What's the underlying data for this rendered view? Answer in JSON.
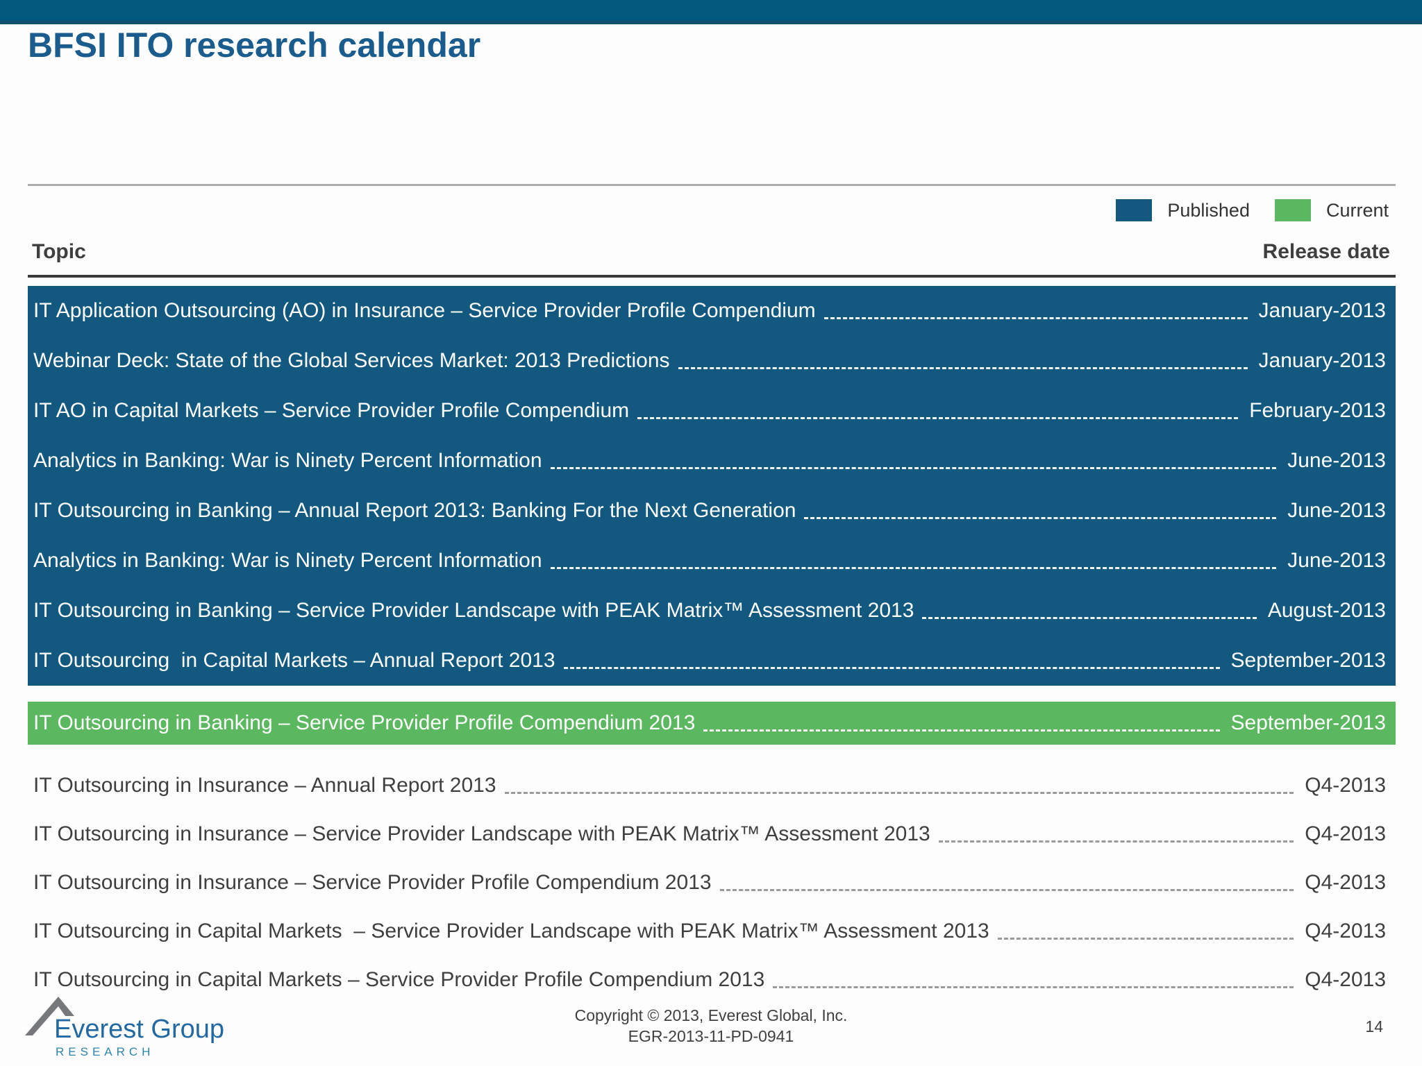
{
  "title": "BFSI ITO research calendar",
  "legend": {
    "published": {
      "label": "Published"
    },
    "current": {
      "label": "Current"
    }
  },
  "table": {
    "headers": {
      "topic": "Topic",
      "release_date": "Release date"
    },
    "sections": [
      {
        "name": "published",
        "rows": [
          {
            "topic": "IT Application Outsourcing (AO) in Insurance – Service Provider Profile Compendium",
            "date": "January-2013"
          },
          {
            "topic": "Webinar Deck: State of the Global Services Market: 2013 Predictions",
            "date": "January-2013"
          },
          {
            "topic": "IT AO in Capital Markets – Service Provider Profile Compendium",
            "date": "February-2013"
          },
          {
            "topic": "Analytics in Banking: War is Ninety Percent Information",
            "date": "June-2013"
          },
          {
            "topic": "IT Outsourcing in Banking – Annual Report 2013: Banking For the Next Generation",
            "date": "June-2013"
          },
          {
            "topic": "Analytics in Banking: War is Ninety Percent Information",
            "date": "June-2013"
          },
          {
            "topic": "IT Outsourcing in Banking – Service Provider Landscape with PEAK Matrix™ Assessment 2013",
            "date": "August-2013"
          },
          {
            "topic": "IT Outsourcing  in Capital Markets – Annual Report 2013",
            "date": "September-2013"
          }
        ]
      },
      {
        "name": "current",
        "rows": [
          {
            "topic": "IT Outsourcing in Banking – Service Provider Profile Compendium 2013",
            "date": "September-2013"
          }
        ]
      },
      {
        "name": "upcoming",
        "rows": [
          {
            "topic": "IT Outsourcing in Insurance – Annual Report 2013",
            "date": "Q4-2013"
          },
          {
            "topic": "IT Outsourcing in Insurance – Service Provider Landscape with PEAK Matrix™ Assessment 2013",
            "date": "Q4-2013"
          },
          {
            "topic": "IT Outsourcing in Insurance – Service Provider Profile Compendium 2013",
            "date": "Q4-2013"
          },
          {
            "topic": "IT Outsourcing in Capital Markets  – Service Provider Landscape with PEAK Matrix™ Assessment 2013",
            "date": "Q4-2013"
          },
          {
            "topic": "IT Outsourcing in Capital Markets – Service Provider Profile Compendium 2013",
            "date": "Q4-2013"
          }
        ]
      }
    ]
  },
  "footer": {
    "logo": {
      "name": "Everest Group",
      "sub": "RESEARCH"
    },
    "copyright_line1": "Copyright © 2013, Everest Global, Inc.",
    "copyright_line2": "EGR-2013-11-PD-0941",
    "page_number": "14"
  },
  "colors": {
    "top_bar": "#03587E",
    "top_bar_edge": "#11506E",
    "title": "#1A5C8D",
    "published_bg": "#12587F",
    "current_bg": "#5CB860",
    "divider": "#ACACAC",
    "header_rule": "#3A3A3A",
    "text_dark": "#3F3F3F",
    "leader_gray": "#9A9A9A",
    "logo_blue": "#2268A2",
    "logo_teal": "#2C85AE",
    "logo_gray": "#77787B",
    "footer_text": "#404040"
  }
}
